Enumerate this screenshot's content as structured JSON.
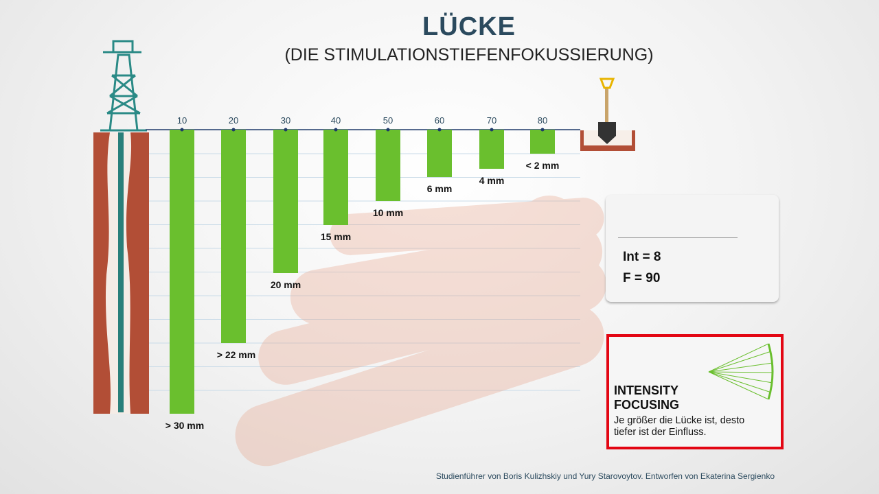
{
  "title": "LÜCKE",
  "subtitle": "(DIE STIMULATIONSTIEFENFOKUSSIERUNG)",
  "chart_data": {
    "type": "bar",
    "categories": [
      "10",
      "20",
      "30",
      "40",
      "50",
      "60",
      "70",
      "80"
    ],
    "values": [
      30,
      22,
      20,
      15,
      10,
      6,
      4,
      2
    ],
    "value_labels": [
      "> 30 mm",
      "> 22 mm",
      "20 mm",
      "15 mm",
      "10 mm",
      "6 mm",
      "4 mm",
      "< 2 mm"
    ],
    "orientation": "downward from top axis",
    "bar_color": "#6abf2e",
    "grid": true
  },
  "info_box": {
    "int": "Int = 8",
    "f": "F = 90"
  },
  "focus_box": {
    "heading_1": "INTENSITY",
    "heading_2": "FOCUSING",
    "desc_1": "Je größer die Lücke ist, desto",
    "desc_2": "tiefer ist der Einfluss.",
    "border_color": "#e30613"
  },
  "footer": "Studienführer von Boris Kulizhskiy und Yury Starovoytov. Entworfen von Ekaterina Sergienko"
}
